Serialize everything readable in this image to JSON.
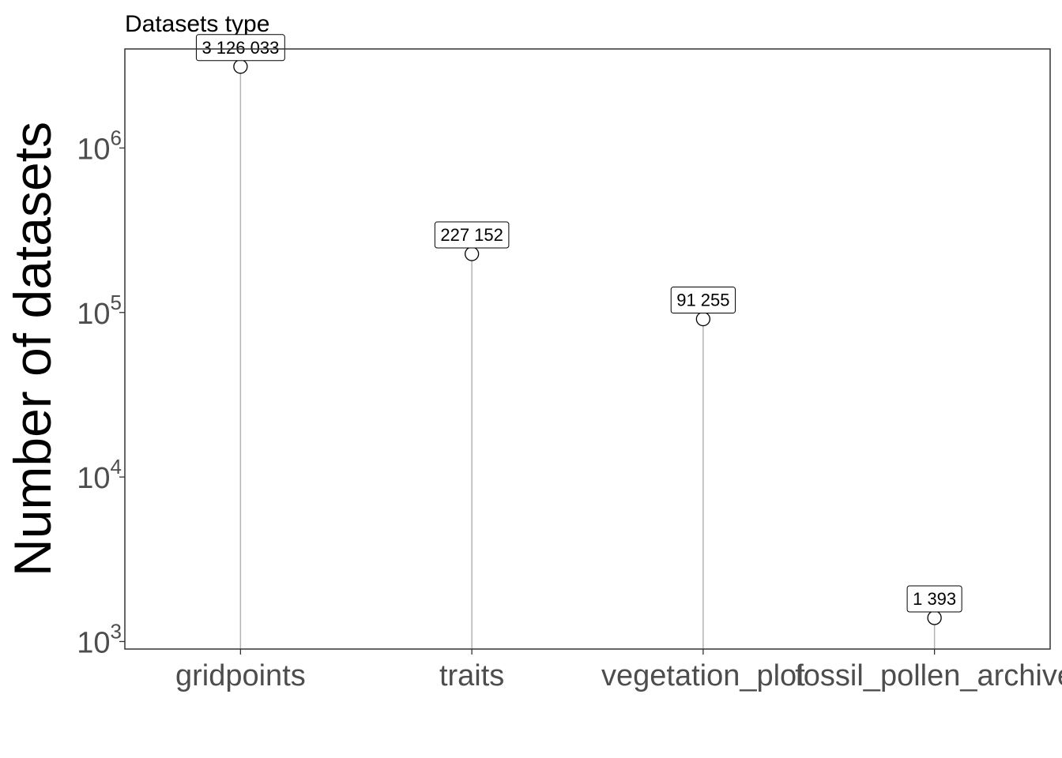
{
  "chart_data": {
    "type": "lollipop",
    "title": "Datasets type",
    "xlabel": "",
    "ylabel": "Number of datasets",
    "categories": [
      "gridpoints",
      "traits",
      "vegetation_plot",
      "fossil_pollen_archive"
    ],
    "values": [
      3126033,
      227152,
      91255,
      1393
    ],
    "data_labels": [
      "3 126 033",
      "227 152",
      "91 255",
      "1 393"
    ],
    "y_scale": "log10",
    "ylim": [
      900,
      4000000
    ],
    "y_ticks": [
      {
        "value": 1000,
        "base": "10",
        "exponent": "3"
      },
      {
        "value": 10000,
        "base": "10",
        "exponent": "4"
      },
      {
        "value": 100000,
        "base": "10",
        "exponent": "5"
      },
      {
        "value": 1000000,
        "base": "10",
        "exponent": "6"
      }
    ],
    "grid": false,
    "legend": "none",
    "colors": {
      "stem": "#b3b3b3",
      "point_fill": "#ffffff",
      "point_stroke": "#000000",
      "panel_border": "#333333"
    }
  }
}
